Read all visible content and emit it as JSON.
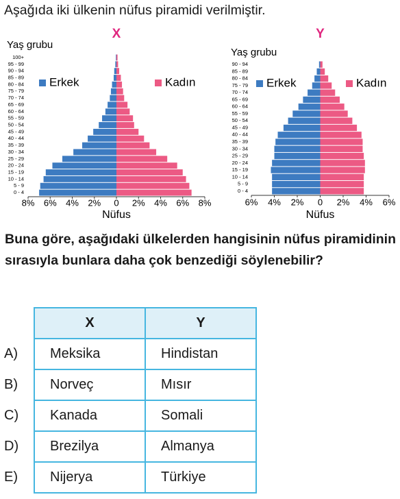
{
  "intro": "Aşağıda iki ülkenin nüfus piramidi verilmiştir.",
  "chart_data": [
    {
      "type": "pyramid",
      "title": "X",
      "y_label": "Yaş grubu",
      "x_label": "Nüfus",
      "categories": [
        "0 - 4",
        "5 - 9",
        "10 - 14",
        "15 - 19",
        "20 - 24",
        "25 - 29",
        "30 - 34",
        "35 - 39",
        "40 - 44",
        "45 - 49",
        "50 - 54",
        "55 - 59",
        "60 - 64",
        "65 - 69",
        "70 - 74",
        "75 - 79",
        "80 - 84",
        "85 - 89",
        "90 - 94",
        "95 - 99",
        "100+"
      ],
      "series": [
        {
          "name": "Erkek",
          "color": "#3d7bc1",
          "values": [
            7.0,
            6.9,
            6.6,
            6.4,
            5.8,
            4.9,
            3.9,
            3.1,
            2.6,
            2.1,
            1.6,
            1.3,
            1.0,
            0.8,
            0.6,
            0.5,
            0.4,
            0.25,
            0.2,
            0.1,
            0.05
          ]
        },
        {
          "name": "Kadın",
          "color": "#ec5a84",
          "values": [
            6.8,
            6.6,
            6.3,
            6.0,
            5.5,
            4.6,
            3.6,
            3.0,
            2.5,
            2.0,
            1.6,
            1.5,
            1.2,
            1.0,
            0.7,
            0.6,
            0.5,
            0.4,
            0.25,
            0.15,
            0.1
          ]
        }
      ],
      "xlim": [
        -8,
        8
      ],
      "xticks": [
        {
          "value": -8,
          "label": "8%"
        },
        {
          "value": -6,
          "label": "6%"
        },
        {
          "value": -4,
          "label": "4%"
        },
        {
          "value": -2,
          "label": "2%"
        },
        0,
        {
          "value": 2,
          "label": "2%"
        },
        {
          "value": 4,
          "label": "4%"
        },
        {
          "value": 6,
          "label": "6%"
        },
        {
          "value": 8,
          "label": "8%"
        }
      ]
    },
    {
      "type": "pyramid",
      "title": "Y",
      "y_label": "Yaş grubu",
      "x_label": "Nüfus",
      "categories": [
        "0 - 4",
        "5 - 9",
        "10 - 14",
        "15 - 19",
        "20 - 24",
        "25 - 29",
        "30 - 34",
        "35 - 39",
        "40 - 44",
        "45 - 49",
        "50 - 54",
        "55 - 59",
        "60 - 64",
        "65 - 69",
        "70 - 74",
        "75 - 79",
        "80 - 84",
        "85 - 89",
        "90 - 94"
      ],
      "series": [
        {
          "name": "Erkek",
          "color": "#3d7bc1",
          "values": [
            4.2,
            4.2,
            4.2,
            4.3,
            4.2,
            4.0,
            4.0,
            3.9,
            3.7,
            3.2,
            2.8,
            2.4,
            1.9,
            1.5,
            1.1,
            0.7,
            0.5,
            0.3,
            0.1
          ]
        },
        {
          "name": "Kadın",
          "color": "#ec5a84",
          "values": [
            3.8,
            3.8,
            3.8,
            3.9,
            3.9,
            3.8,
            3.7,
            3.7,
            3.6,
            3.2,
            2.8,
            2.4,
            2.1,
            1.7,
            1.3,
            1.0,
            0.7,
            0.4,
            0.2
          ]
        }
      ],
      "xlim": [
        -6,
        6
      ],
      "xticks": [
        {
          "value": -6,
          "label": "6%"
        },
        {
          "value": -4,
          "label": "4%"
        },
        {
          "value": -2,
          "label": "2%"
        },
        0,
        {
          "value": 2,
          "label": "2%"
        },
        {
          "value": 4,
          "label": "4%"
        },
        {
          "value": 6,
          "label": "6%"
        }
      ]
    }
  ],
  "question": "Buna göre, aşağıdaki ülkelerden hangisinin nüfus piramidinin sırasıyla bunlara daha çok benzediği söylenebilir?",
  "table": {
    "header": [
      "X",
      "Y"
    ],
    "rows": [
      [
        "A)",
        "Meksika",
        "Hindistan"
      ],
      [
        "B)",
        "Norveç",
        "Mısır"
      ],
      [
        "C)",
        "Kanada",
        "Somali"
      ],
      [
        "D)",
        "Brezilya",
        "Almanya"
      ],
      [
        "E)",
        "Nijerya",
        "Türkiye"
      ]
    ]
  }
}
